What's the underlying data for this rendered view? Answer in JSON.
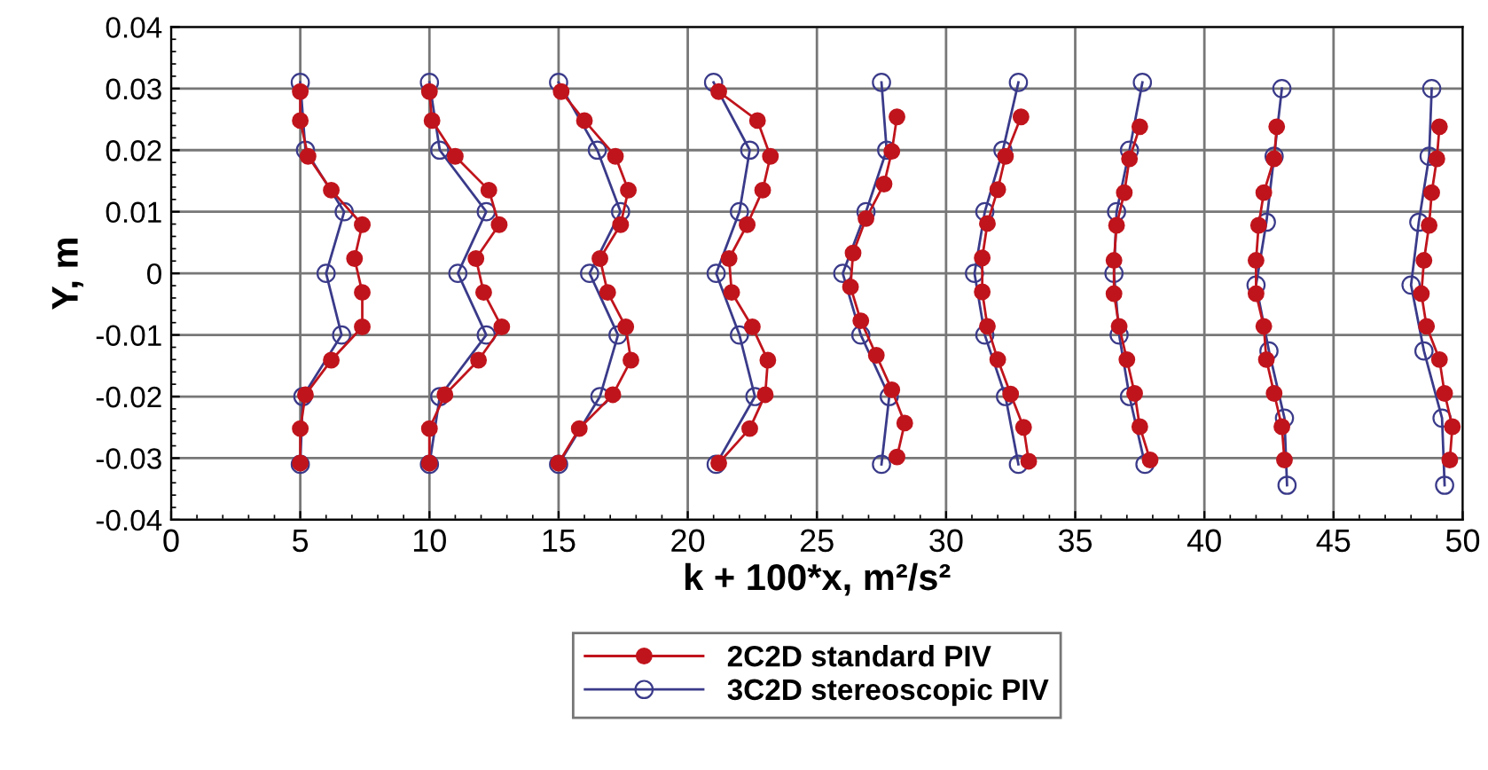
{
  "chart_data": {
    "type": "line",
    "xlabel": "k + 100*x, m²/s²",
    "ylabel": "Y, m",
    "xlim": [
      0,
      50
    ],
    "xticks": [
      0,
      5,
      10,
      15,
      20,
      25,
      30,
      35,
      40,
      45,
      50
    ],
    "ylim": [
      -0.04,
      0.04
    ],
    "yticks": [
      -0.04,
      -0.03,
      -0.02,
      -0.01,
      0,
      0.01,
      0.02,
      0.03,
      0.04
    ],
    "grid": true,
    "legend": "bottom",
    "marker": "circle",
    "line_style": "solid",
    "series": [
      {
        "name": "2C2D standard PIV",
        "color": "#c0141c",
        "x": [
          5,
          5,
          5.3,
          6.2,
          7.4,
          7.1,
          7.4,
          7.4,
          6.2,
          5.2,
          5,
          5
        ],
        "values": [
          0.0295,
          0.0248,
          0.019,
          0.0135,
          0.0079,
          0.0024,
          -0.0031,
          -0.0087,
          -0.0141,
          -0.0197,
          -0.0252,
          -0.0308
        ]
      },
      {
        "name": "3C2D stereoscopic PIV",
        "color": "#3a3a8a",
        "x": [
          5,
          5.2,
          6.7,
          6.0,
          6.6,
          5.1,
          5
        ],
        "values": [
          0.031,
          0.02,
          0.01,
          0,
          -0.01,
          -0.02,
          -0.031
        ]
      },
      {
        "color": "#c0141c",
        "x": [
          10,
          10.1,
          11.0,
          12.3,
          12.7,
          11.8,
          12.1,
          12.8,
          11.9,
          10.6,
          10,
          10
        ],
        "values": [
          0.0295,
          0.0248,
          0.019,
          0.0135,
          0.0079,
          0.0024,
          -0.0031,
          -0.0087,
          -0.0141,
          -0.0197,
          -0.0252,
          -0.0308
        ]
      },
      {
        "color": "#3a3a8a",
        "x": [
          10,
          10.4,
          12.2,
          11.1,
          12.2,
          10.4,
          10
        ],
        "values": [
          0.031,
          0.02,
          0.01,
          0,
          -0.01,
          -0.02,
          -0.031
        ]
      },
      {
        "color": "#c0141c",
        "x": [
          15.1,
          16.0,
          17.2,
          17.7,
          17.4,
          16.6,
          16.9,
          17.6,
          17.8,
          17.1,
          15.8,
          15.0
        ],
        "values": [
          0.0295,
          0.0248,
          0.019,
          0.0135,
          0.0079,
          0.0024,
          -0.0031,
          -0.0087,
          -0.0141,
          -0.0197,
          -0.0252,
          -0.0308
        ]
      },
      {
        "color": "#3a3a8a",
        "x": [
          15.0,
          16.5,
          17.4,
          16.2,
          17.3,
          16.6,
          15.0
        ],
        "values": [
          0.031,
          0.02,
          0.01,
          0,
          -0.01,
          -0.02,
          -0.031
        ]
      },
      {
        "color": "#c0141c",
        "x": [
          21.2,
          22.7,
          23.2,
          22.9,
          22.3,
          21.6,
          21.7,
          22.5,
          23.1,
          23.0,
          22.4,
          21.2
        ],
        "values": [
          0.0295,
          0.0248,
          0.019,
          0.0135,
          0.0079,
          0.0024,
          -0.0031,
          -0.0087,
          -0.0141,
          -0.0197,
          -0.0252,
          -0.0308
        ]
      },
      {
        "color": "#3a3a8a",
        "x": [
          21.0,
          22.4,
          22.0,
          21.1,
          22.0,
          22.6,
          21.1
        ],
        "values": [
          0.031,
          0.02,
          0.01,
          0,
          -0.01,
          -0.02,
          -0.031
        ]
      },
      {
        "color": "#c0141c",
        "x": [
          28.1,
          27.9,
          27.6,
          26.9,
          26.4,
          26.3,
          26.7,
          27.3,
          27.9,
          28.4,
          28.1
        ],
        "values": [
          0.0254,
          0.0198,
          0.0145,
          0.0089,
          0.0033,
          -0.0022,
          -0.0077,
          -0.0133,
          -0.0189,
          -0.0243,
          -0.0298
        ]
      },
      {
        "color": "#3a3a8a",
        "x": [
          27.5,
          27.7,
          26.9,
          26.0,
          26.7,
          27.8,
          27.5
        ],
        "values": [
          0.031,
          0.02,
          0.01,
          0,
          -0.01,
          -0.02,
          -0.031
        ]
      },
      {
        "color": "#c0141c",
        "x": [
          32.9,
          32.3,
          32.0,
          31.6,
          31.4,
          31.4,
          31.6,
          32.0,
          32.5,
          33.0,
          33.2
        ],
        "values": [
          0.0254,
          0.019,
          0.0136,
          0.0081,
          0.0025,
          -0.003,
          -0.0086,
          -0.014,
          -0.0196,
          -0.025,
          -0.0305
        ]
      },
      {
        "color": "#3a3a8a",
        "x": [
          32.8,
          32.2,
          31.5,
          31.1,
          31.5,
          32.3,
          32.8
        ],
        "values": [
          0.031,
          0.02,
          0.01,
          0,
          -0.01,
          -0.02,
          -0.031
        ]
      },
      {
        "color": "#c0141c",
        "x": [
          37.5,
          37.1,
          36.9,
          36.6,
          36.5,
          36.5,
          36.7,
          37.0,
          37.3,
          37.5,
          37.9
        ],
        "values": [
          0.0238,
          0.0186,
          0.0131,
          0.0078,
          0.0021,
          -0.0033,
          -0.0086,
          -0.014,
          -0.0195,
          -0.0249,
          -0.0303
        ]
      },
      {
        "color": "#3a3a8a",
        "x": [
          37.6,
          37.1,
          36.6,
          36.5,
          36.7,
          37.1,
          37.7
        ],
        "values": [
          0.031,
          0.02,
          0.01,
          0,
          -0.01,
          -0.02,
          -0.031
        ]
      },
      {
        "color": "#c0141c",
        "x": [
          42.8,
          42.7,
          42.3,
          42.1,
          42.0,
          42.0,
          42.3,
          42.4,
          42.7,
          43.0,
          43.1
        ],
        "values": [
          0.0238,
          0.0186,
          0.0131,
          0.0078,
          0.0021,
          -0.0033,
          -0.0086,
          -0.014,
          -0.0195,
          -0.0249,
          -0.0303
        ]
      },
      {
        "color": "#3a3a8a",
        "x": [
          43.0,
          42.7,
          42.4,
          42.0,
          42.5,
          43.1,
          43.2
        ],
        "values": [
          0.03,
          0.019,
          0.0083,
          -0.0019,
          -0.0126,
          -0.0235,
          -0.0344
        ]
      },
      {
        "color": "#c0141c",
        "x": [
          49.1,
          49.0,
          48.8,
          48.7,
          48.5,
          48.4,
          48.6,
          49.1,
          49.3,
          49.6,
          49.5
        ],
        "values": [
          0.0238,
          0.0186,
          0.0131,
          0.0078,
          0.0021,
          -0.0033,
          -0.0086,
          -0.014,
          -0.0195,
          -0.0249,
          -0.0303
        ]
      },
      {
        "color": "#3a3a8a",
        "x": [
          48.8,
          48.7,
          48.3,
          48.0,
          48.5,
          49.2,
          49.3
        ],
        "values": [
          0.03,
          0.019,
          0.0083,
          -0.0019,
          -0.0126,
          -0.0235,
          -0.0344
        ]
      }
    ]
  }
}
